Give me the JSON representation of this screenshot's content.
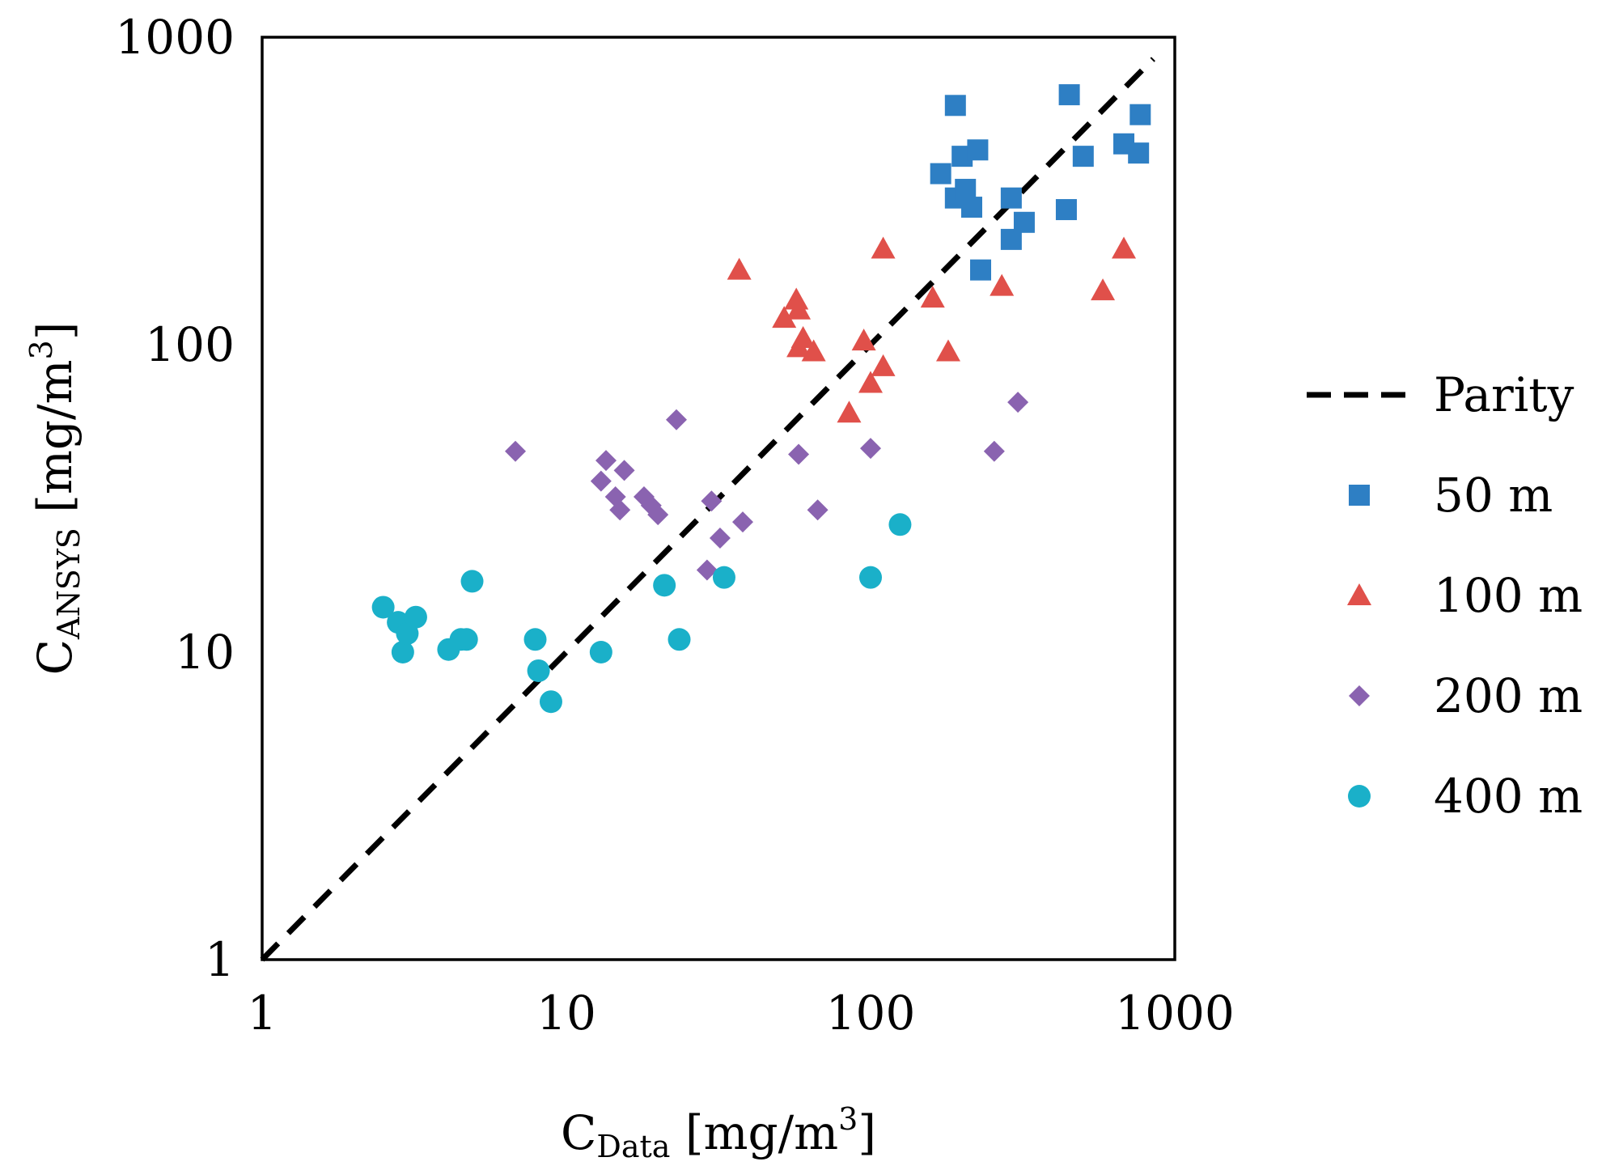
{
  "chart_data": {
    "type": "scatter",
    "title": "",
    "xlabel": {
      "base": "C",
      "sub": "Data",
      "unit_pre": " [mg/m",
      "unit_sup": "3",
      "unit_post": "]"
    },
    "ylabel": {
      "base": "C",
      "sub": "ANSYS",
      "unit_pre": " [mg/m",
      "unit_sup": "3",
      "unit_post": "]"
    },
    "x_scale": "log",
    "y_scale": "log",
    "xlim": [
      1,
      1000
    ],
    "ylim": [
      1,
      1000
    ],
    "x_ticks": [
      1,
      10,
      100,
      1000
    ],
    "y_ticks": [
      1,
      10,
      100,
      1000
    ],
    "x_tick_labels": [
      "1",
      "10",
      "100",
      "1000"
    ],
    "y_tick_labels": [
      "1",
      "10",
      "100",
      "1000"
    ],
    "grid": false,
    "legend_position": "right",
    "parity": {
      "name": "Parity",
      "x": [
        1,
        850
      ],
      "y": [
        1,
        850
      ],
      "color": "#000000",
      "style": "dashed"
    },
    "series": [
      {
        "name": "50 m",
        "marker": "square",
        "color": "#2e7fc4",
        "points": [
          [
            190,
            600
          ],
          [
            200,
            410
          ],
          [
            225,
            430
          ],
          [
            170,
            360
          ],
          [
            190,
            300
          ],
          [
            205,
            320
          ],
          [
            215,
            280
          ],
          [
            230,
            175
          ],
          [
            290,
            300
          ],
          [
            290,
            220
          ],
          [
            320,
            250
          ],
          [
            450,
            650
          ],
          [
            500,
            410
          ],
          [
            440,
            275
          ],
          [
            680,
            450
          ],
          [
            760,
            420
          ],
          [
            770,
            560
          ]
        ]
      },
      {
        "name": "100 m",
        "marker": "triangle",
        "color": "#e0504a",
        "points": [
          [
            37,
            175
          ],
          [
            52,
            122
          ],
          [
            57,
            140
          ],
          [
            58,
            130
          ],
          [
            60,
            105
          ],
          [
            58,
            98
          ],
          [
            65,
            95
          ],
          [
            85,
            60
          ],
          [
            95,
            103
          ],
          [
            100,
            75
          ],
          [
            110,
            205
          ],
          [
            110,
            85
          ],
          [
            160,
            142
          ],
          [
            180,
            95
          ],
          [
            270,
            155
          ],
          [
            580,
            150
          ],
          [
            680,
            205
          ]
        ]
      },
      {
        "name": "200 m",
        "marker": "diamond",
        "color": "#8a63b0",
        "points": [
          [
            6.8,
            45
          ],
          [
            13,
            36
          ],
          [
            13.5,
            42
          ],
          [
            14.5,
            32
          ],
          [
            15,
            29
          ],
          [
            15.5,
            39
          ],
          [
            18,
            32
          ],
          [
            19,
            30
          ],
          [
            20,
            28
          ],
          [
            23,
            57
          ],
          [
            29,
            18.5
          ],
          [
            30,
            31
          ],
          [
            32,
            23.5
          ],
          [
            38,
            26.5
          ],
          [
            58,
            44
          ],
          [
            67,
            29
          ],
          [
            100,
            46
          ],
          [
            255,
            45
          ],
          [
            305,
            65
          ]
        ]
      },
      {
        "name": "400 m",
        "marker": "circle",
        "color": "#1ab0c9",
        "points": [
          [
            2.5,
            14
          ],
          [
            2.8,
            12.5
          ],
          [
            2.9,
            10
          ],
          [
            3,
            11.5
          ],
          [
            3.2,
            13
          ],
          [
            4.1,
            10.2
          ],
          [
            4.5,
            11
          ],
          [
            4.7,
            11
          ],
          [
            4.9,
            17
          ],
          [
            7.9,
            11
          ],
          [
            8.1,
            8.7
          ],
          [
            8.9,
            6.9
          ],
          [
            13,
            10
          ],
          [
            21,
            16.5
          ],
          [
            23.5,
            11
          ],
          [
            33,
            17.5
          ],
          [
            100,
            17.5
          ],
          [
            125,
            26
          ]
        ]
      }
    ]
  }
}
